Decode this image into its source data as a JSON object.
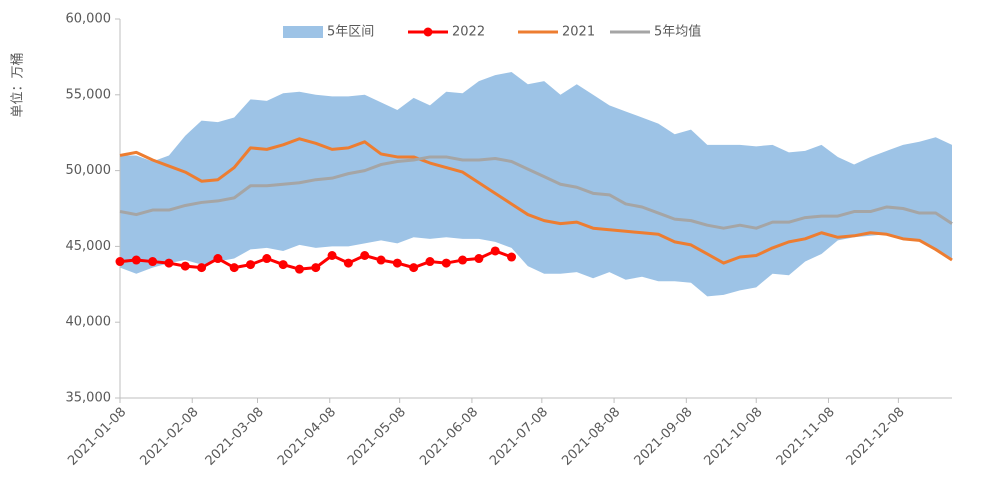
{
  "chart_data": {
    "type": "line",
    "y_label": "单位：万桶",
    "x": [
      "2021-01-08",
      "2021-01-15",
      "2021-01-22",
      "2021-01-29",
      "2021-02-05",
      "2021-02-12",
      "2021-02-19",
      "2021-02-26",
      "2021-03-05",
      "2021-03-12",
      "2021-03-19",
      "2021-03-26",
      "2021-04-02",
      "2021-04-09",
      "2021-04-16",
      "2021-04-23",
      "2021-04-30",
      "2021-05-07",
      "2021-05-14",
      "2021-05-21",
      "2021-05-28",
      "2021-06-04",
      "2021-06-11",
      "2021-06-18",
      "2021-06-25",
      "2021-07-02",
      "2021-07-09",
      "2021-07-16",
      "2021-07-23",
      "2021-07-30",
      "2021-08-06",
      "2021-08-13",
      "2021-08-20",
      "2021-08-27",
      "2021-09-03",
      "2021-09-10",
      "2021-09-17",
      "2021-09-24",
      "2021-10-01",
      "2021-10-08",
      "2021-10-15",
      "2021-10-22",
      "2021-10-29",
      "2021-11-05",
      "2021-11-12",
      "2021-11-19",
      "2021-11-26",
      "2021-12-03",
      "2021-12-10",
      "2021-12-17",
      "2021-12-24",
      "2021-12-31"
    ],
    "xlim": [
      "2021-01-08",
      "2021-12-31"
    ],
    "xticks": [
      "2021-01-08",
      "2021-02-08",
      "2021-03-08",
      "2021-04-08",
      "2021-05-08",
      "2021-06-08",
      "2021-07-08",
      "2021-08-08",
      "2021-09-08",
      "2021-10-08",
      "2021-11-08",
      "2021-12-08"
    ],
    "ylim": [
      35000,
      60000
    ],
    "yticks": [
      {
        "value": 35000,
        "label": "35,000"
      },
      {
        "value": 40000,
        "label": "40,000"
      },
      {
        "value": 45000,
        "label": "45,000"
      },
      {
        "value": 50000,
        "label": "50,000"
      },
      {
        "value": 55000,
        "label": "55,000"
      },
      {
        "value": 60000,
        "label": "60,000"
      }
    ],
    "series": [
      {
        "name": "5年区间",
        "color": "#9dc3e6",
        "kind": "band",
        "values": [
          51000,
          51000,
          50600,
          51000,
          52300,
          53300,
          53200,
          53500,
          54700,
          54600,
          55100,
          55200,
          55000,
          54900,
          54900,
          55000,
          54500,
          54000,
          54800,
          54300,
          55200,
          55100,
          55900,
          56300,
          56500,
          55700,
          55900,
          55000,
          55700,
          55000,
          54300,
          53900,
          53500,
          53100,
          52400,
          52700,
          51700,
          51700,
          51700,
          51600,
          51700,
          51200,
          51300,
          51700,
          50900,
          50400,
          50900,
          51300,
          51700,
          51900,
          52200,
          51700
        ],
        "lower": [
          43600,
          43200,
          43600,
          43900,
          44100,
          43800,
          44000,
          44200,
          44800,
          44900,
          44700,
          45100,
          44900,
          45000,
          45000,
          45200,
          45400,
          45200,
          45600,
          45500,
          45600,
          45500,
          45500,
          45300,
          44900,
          43700,
          43200,
          43200,
          43300,
          42900,
          43300,
          42800,
          43000,
          42700,
          42700,
          42600,
          41700,
          41800,
          42100,
          42300,
          43200,
          43100,
          44000,
          44500,
          45400,
          45600,
          45700,
          45800,
          45500,
          45400,
          44800,
          44100
        ]
      },
      {
        "name": "2022",
        "color": "#ff0000",
        "kind": "marker",
        "values": [
          44000,
          44100,
          44000,
          43900,
          43700,
          43600,
          44200,
          43600,
          43800,
          44200,
          43800,
          43500,
          43600,
          44400,
          43900,
          44400,
          44100,
          43900,
          43600,
          44000,
          43900,
          44100,
          44200,
          44700,
          44300,
          null,
          null,
          null,
          null,
          null,
          null,
          null,
          null,
          null,
          null,
          null,
          null,
          null,
          null,
          null,
          null,
          null,
          null,
          null,
          null,
          null,
          null,
          null,
          null,
          null,
          null,
          null
        ]
      },
      {
        "name": "2021",
        "color": "#ed7d31",
        "kind": "line",
        "values": [
          51000,
          51200,
          50700,
          50300,
          49900,
          49300,
          49400,
          50200,
          51500,
          51400,
          51700,
          52100,
          51800,
          51400,
          51500,
          51900,
          51100,
          50900,
          50900,
          50500,
          50200,
          49900,
          49200,
          48500,
          47800,
          47100,
          46700,
          46500,
          46600,
          46200,
          46100,
          46000,
          45900,
          45800,
          45300,
          45100,
          44500,
          43900,
          44300,
          44400,
          44900,
          45300,
          45500,
          45900,
          45600,
          45700,
          45900,
          45800,
          45500,
          45400,
          44800,
          44100
        ]
      },
      {
        "name": "5年均值",
        "color": "#a5a5a5",
        "kind": "line",
        "values": [
          47300,
          47100,
          47400,
          47400,
          47700,
          47900,
          48000,
          48200,
          49000,
          49000,
          49100,
          49200,
          49400,
          49500,
          49800,
          50000,
          50400,
          50600,
          50700,
          50900,
          50900,
          50700,
          50700,
          50800,
          50600,
          50100,
          49600,
          49100,
          48900,
          48500,
          48400,
          47800,
          47600,
          47200,
          46800,
          46700,
          46400,
          46200,
          46400,
          46200,
          46600,
          46600,
          46900,
          47000,
          47000,
          47300,
          47300,
          47600,
          47500,
          47200,
          47200,
          46500
        ]
      }
    ]
  }
}
